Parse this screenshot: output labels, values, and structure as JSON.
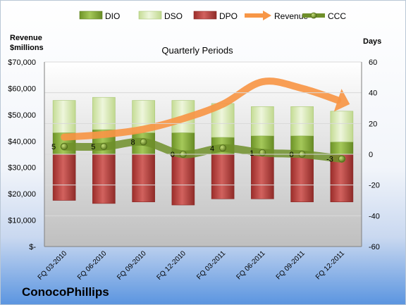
{
  "company": "ConocoPhillips",
  "chart_data": {
    "type": "bar",
    "title": "Quarterly Periods",
    "ylabel_left": [
      "Revenue",
      "$millions"
    ],
    "ylabel_right": "Days",
    "categories": [
      "FQ 03-2010",
      "FQ 06-2010",
      "FQ 09-2010",
      "FQ 12-2010",
      "FQ 03-2011",
      "FQ 06-2011",
      "FQ 09-2011",
      "FQ 12-2011"
    ],
    "y_left_ticks": [
      "$70,000",
      "$60,000",
      "$50,000",
      "$40,000",
      "$30,000",
      "$20,000",
      "$10,000",
      "$-"
    ],
    "y_left_range": [
      0,
      70000
    ],
    "y_right_ticks": [
      "60",
      "40",
      "20",
      "0",
      "-20",
      "-40",
      "-60"
    ],
    "y_right_range": [
      -60,
      60
    ],
    "legend": [
      "DIO",
      "DSO",
      "DPO",
      "Revenue",
      "CCC"
    ],
    "legend_position": "top",
    "series": [
      {
        "name": "DIO",
        "axis": "right",
        "kind": "stacked-bar",
        "values": [
          14,
          16,
          14,
          14,
          11,
          12,
          12,
          8
        ]
      },
      {
        "name": "DSO",
        "axis": "right",
        "kind": "stacked-bar",
        "values": [
          21,
          21,
          21,
          21,
          22,
          19,
          19,
          20
        ]
      },
      {
        "name": "DPO",
        "axis": "right",
        "kind": "negative-bar",
        "values": [
          -30,
          -32,
          -31,
          -33,
          -29,
          -29,
          -31,
          -31
        ]
      },
      {
        "name": "Revenue",
        "axis": "left",
        "kind": "line",
        "values": [
          41500,
          42500,
          44500,
          48500,
          54000,
          62500,
          60000,
          55000
        ]
      },
      {
        "name": "CCC",
        "axis": "right",
        "kind": "line",
        "values": [
          5,
          5,
          8,
          0,
          4,
          1,
          0,
          -3
        ]
      }
    ],
    "colors": {
      "DIO": "#8cb43c",
      "DSO": "#d6e7b0",
      "DPO": "#c0504d",
      "Revenue": "#f79646",
      "CCC": "#6f8f2a"
    }
  }
}
